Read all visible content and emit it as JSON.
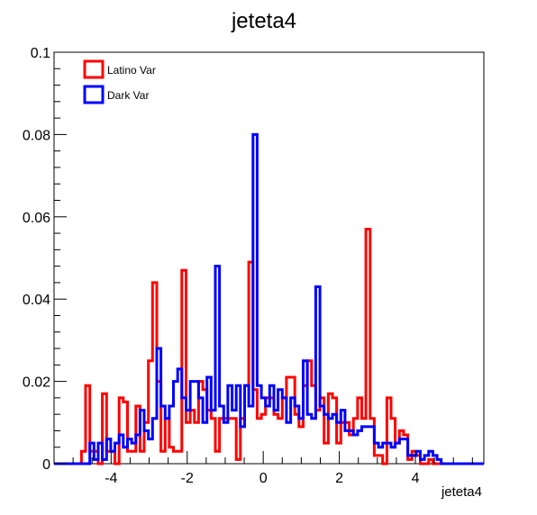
{
  "chart_data": {
    "type": "histogram-step",
    "title": "jeteta4",
    "xlabel": "jeteta4",
    "ylabel": "",
    "xlim": [
      -5.5,
      5.8
    ],
    "ylim": [
      0,
      0.1
    ],
    "x_ticks": [
      -4,
      -2,
      0,
      2,
      4
    ],
    "x_tick_labels": [
      "-4",
      "-2",
      "0",
      "2",
      "4"
    ],
    "y_ticks": [
      0,
      0.02,
      0.04,
      0.06,
      0.08,
      0.1
    ],
    "y_tick_labels": [
      "0",
      "0.02",
      "0.04",
      "0.06",
      "0.08",
      "0.1"
    ],
    "legend_position": "top-left",
    "bin_width": 0.11,
    "series": [
      {
        "name": "Latino Var",
        "color": "#ff0000",
        "bins": [
          [
            -4.78,
            0.003
          ],
          [
            -4.67,
            0.019
          ],
          [
            -4.56,
            0.003
          ],
          [
            -4.45,
            0.003
          ],
          [
            -4.34,
            0.0
          ],
          [
            -4.23,
            0.017
          ],
          [
            -4.12,
            0.003
          ],
          [
            -4.01,
            0.003
          ],
          [
            -3.9,
            0.0
          ],
          [
            -3.79,
            0.016
          ],
          [
            -3.68,
            0.015
          ],
          [
            -3.57,
            0.003
          ],
          [
            -3.46,
            0.003
          ],
          [
            -3.35,
            0.014
          ],
          [
            -3.24,
            0.003
          ],
          [
            -3.13,
            0.01
          ],
          [
            -3.02,
            0.025
          ],
          [
            -2.91,
            0.044
          ],
          [
            -2.8,
            0.02
          ],
          [
            -2.69,
            0.003
          ],
          [
            -2.58,
            0.011
          ],
          [
            -2.47,
            0.004
          ],
          [
            -2.36,
            0.003
          ],
          [
            -2.25,
            0.003
          ],
          [
            -2.14,
            0.047
          ],
          [
            -2.03,
            0.01
          ],
          [
            -1.92,
            0.013
          ],
          [
            -1.81,
            0.01
          ],
          [
            -1.7,
            0.02
          ],
          [
            -1.59,
            0.018
          ],
          [
            -1.48,
            0.013
          ],
          [
            -1.37,
            0.011
          ],
          [
            -1.26,
            0.003
          ],
          [
            -1.15,
            0.011
          ],
          [
            -1.04,
            0.011
          ],
          [
            -0.93,
            0.011
          ],
          [
            -0.82,
            0.011
          ],
          [
            -0.71,
            0.001
          ],
          [
            -0.6,
            0.011
          ],
          [
            -0.49,
            0.019
          ],
          [
            -0.38,
            0.049
          ],
          [
            -0.27,
            0.018
          ],
          [
            -0.16,
            0.011
          ],
          [
            -0.05,
            0.012
          ],
          [
            0.06,
            0.016
          ],
          [
            0.17,
            0.016
          ],
          [
            0.28,
            0.012
          ],
          [
            0.39,
            0.011
          ],
          [
            0.5,
            0.016
          ],
          [
            0.61,
            0.021
          ],
          [
            0.72,
            0.021
          ],
          [
            0.83,
            0.012
          ],
          [
            0.94,
            0.009
          ],
          [
            1.05,
            0.019
          ],
          [
            1.16,
            0.025
          ],
          [
            1.27,
            0.019
          ],
          [
            1.38,
            0.013
          ],
          [
            1.49,
            0.016
          ],
          [
            1.6,
            0.005
          ],
          [
            1.71,
            0.017
          ],
          [
            1.82,
            0.016
          ],
          [
            1.93,
            0.005
          ],
          [
            2.04,
            0.01
          ],
          [
            2.15,
            0.01
          ],
          [
            2.26,
            0.007
          ],
          [
            2.37,
            0.011
          ],
          [
            2.48,
            0.016
          ],
          [
            2.59,
            0.011
          ],
          [
            2.7,
            0.057
          ],
          [
            2.81,
            0.011
          ],
          [
            2.92,
            0.002
          ],
          [
            3.03,
            0.002
          ],
          [
            3.14,
            0.0
          ],
          [
            3.25,
            0.016
          ],
          [
            3.36,
            0.011
          ],
          [
            3.47,
            0.005
          ],
          [
            3.58,
            0.008
          ],
          [
            3.69,
            0.007
          ],
          [
            3.8,
            0.001
          ],
          [
            3.91,
            0.003
          ],
          [
            4.02,
            0.002
          ],
          [
            4.13,
            0.0
          ],
          [
            4.24,
            0.0
          ],
          [
            4.35,
            0.001
          ],
          [
            4.46,
            0.0
          ],
          [
            4.57,
            0.0
          ]
        ]
      },
      {
        "name": "Dark Var",
        "color": "#0000ff",
        "bins": [
          [
            -4.56,
            0.005
          ],
          [
            -4.45,
            0.001
          ],
          [
            -4.34,
            0.005
          ],
          [
            -4.23,
            0.001
          ],
          [
            -4.12,
            0.006
          ],
          [
            -4.01,
            0.003
          ],
          [
            -3.9,
            0.005
          ],
          [
            -3.79,
            0.007
          ],
          [
            -3.68,
            0.004
          ],
          [
            -3.57,
            0.006
          ],
          [
            -3.46,
            0.005
          ],
          [
            -3.35,
            0.007
          ],
          [
            -3.24,
            0.013
          ],
          [
            -3.13,
            0.008
          ],
          [
            -3.02,
            0.006
          ],
          [
            -2.91,
            0.011
          ],
          [
            -2.8,
            0.028
          ],
          [
            -2.69,
            0.014
          ],
          [
            -2.58,
            0.011
          ],
          [
            -2.47,
            0.014
          ],
          [
            -2.36,
            0.02
          ],
          [
            -2.25,
            0.023
          ],
          [
            -2.14,
            0.016
          ],
          [
            -2.03,
            0.013
          ],
          [
            -1.92,
            0.02
          ],
          [
            -1.81,
            0.02
          ],
          [
            -1.7,
            0.016
          ],
          [
            -1.59,
            0.01
          ],
          [
            -1.48,
            0.021
          ],
          [
            -1.37,
            0.013
          ],
          [
            -1.26,
            0.048
          ],
          [
            -1.15,
            0.014
          ],
          [
            -1.04,
            0.01
          ],
          [
            -0.93,
            0.019
          ],
          [
            -0.82,
            0.013
          ],
          [
            -0.71,
            0.019
          ],
          [
            -0.6,
            0.009
          ],
          [
            -0.49,
            0.019
          ],
          [
            -0.38,
            0.014
          ],
          [
            -0.27,
            0.08
          ],
          [
            -0.16,
            0.019
          ],
          [
            -0.05,
            0.016
          ],
          [
            0.06,
            0.014
          ],
          [
            0.17,
            0.019
          ],
          [
            0.28,
            0.013
          ],
          [
            0.39,
            0.018
          ],
          [
            0.5,
            0.016
          ],
          [
            0.61,
            0.01
          ],
          [
            0.72,
            0.016
          ],
          [
            0.83,
            0.014
          ],
          [
            0.94,
            0.011
          ],
          [
            1.05,
            0.025
          ],
          [
            1.16,
            0.012
          ],
          [
            1.27,
            0.011
          ],
          [
            1.38,
            0.043
          ],
          [
            1.49,
            0.014
          ],
          [
            1.6,
            0.012
          ],
          [
            1.71,
            0.011
          ],
          [
            1.82,
            0.012
          ],
          [
            1.93,
            0.01
          ],
          [
            2.04,
            0.013
          ],
          [
            2.15,
            0.008
          ],
          [
            2.26,
            0.008
          ],
          [
            2.37,
            0.007
          ],
          [
            2.48,
            0.008
          ],
          [
            2.59,
            0.009
          ],
          [
            2.7,
            0.009
          ],
          [
            2.81,
            0.009
          ],
          [
            2.92,
            0.005
          ],
          [
            3.03,
            0.004
          ],
          [
            3.14,
            0.005
          ],
          [
            3.25,
            0.005
          ],
          [
            3.36,
            0.004
          ],
          [
            3.47,
            0.005
          ],
          [
            3.58,
            0.006
          ],
          [
            3.69,
            0.006
          ],
          [
            3.8,
            0.002
          ],
          [
            3.91,
            0.002
          ],
          [
            4.02,
            0.003
          ],
          [
            4.13,
            0.001
          ],
          [
            4.24,
            0.002
          ],
          [
            4.35,
            0.003
          ],
          [
            4.46,
            0.002
          ],
          [
            4.57,
            0.001
          ]
        ]
      }
    ]
  }
}
